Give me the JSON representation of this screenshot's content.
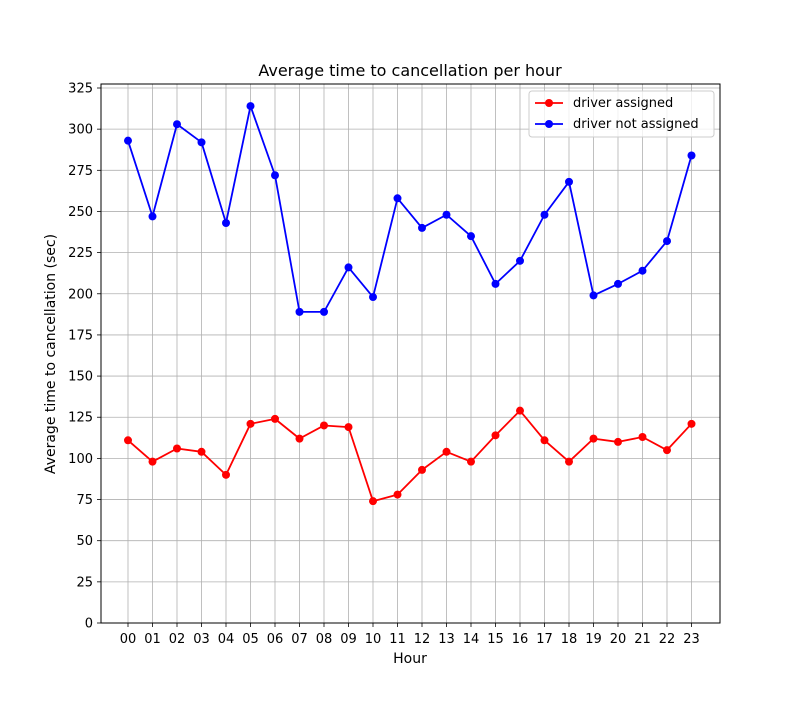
{
  "chart_data": {
    "type": "line",
    "title": "Average time to cancellation per hour",
    "xlabel": "Hour",
    "ylabel": "Average time to cancellation (sec)",
    "categories": [
      "00",
      "01",
      "02",
      "03",
      "04",
      "05",
      "06",
      "07",
      "08",
      "09",
      "10",
      "11",
      "12",
      "13",
      "14",
      "15",
      "16",
      "17",
      "18",
      "19",
      "20",
      "21",
      "22",
      "23"
    ],
    "ylim": [
      0,
      325
    ],
    "yticks": [
      0,
      25,
      50,
      75,
      100,
      125,
      150,
      175,
      200,
      225,
      250,
      275,
      300,
      325
    ],
    "grid": true,
    "legend_position": "top-right",
    "series": [
      {
        "name": "driver assigned",
        "color": "#ff0000",
        "marker": "circle",
        "values": [
          111,
          98,
          106,
          104,
          90,
          121,
          124,
          112,
          120,
          119,
          74,
          78,
          93,
          104,
          98,
          114,
          129,
          111,
          98,
          112,
          110,
          113,
          105,
          121
        ]
      },
      {
        "name": "driver not assigned",
        "color": "#0000ff",
        "marker": "circle",
        "values": [
          293,
          247,
          303,
          292,
          243,
          314,
          272,
          189,
          189,
          216,
          198,
          258,
          240,
          248,
          235,
          206,
          220,
          248,
          268,
          199,
          206,
          214,
          232,
          284
        ]
      }
    ]
  }
}
